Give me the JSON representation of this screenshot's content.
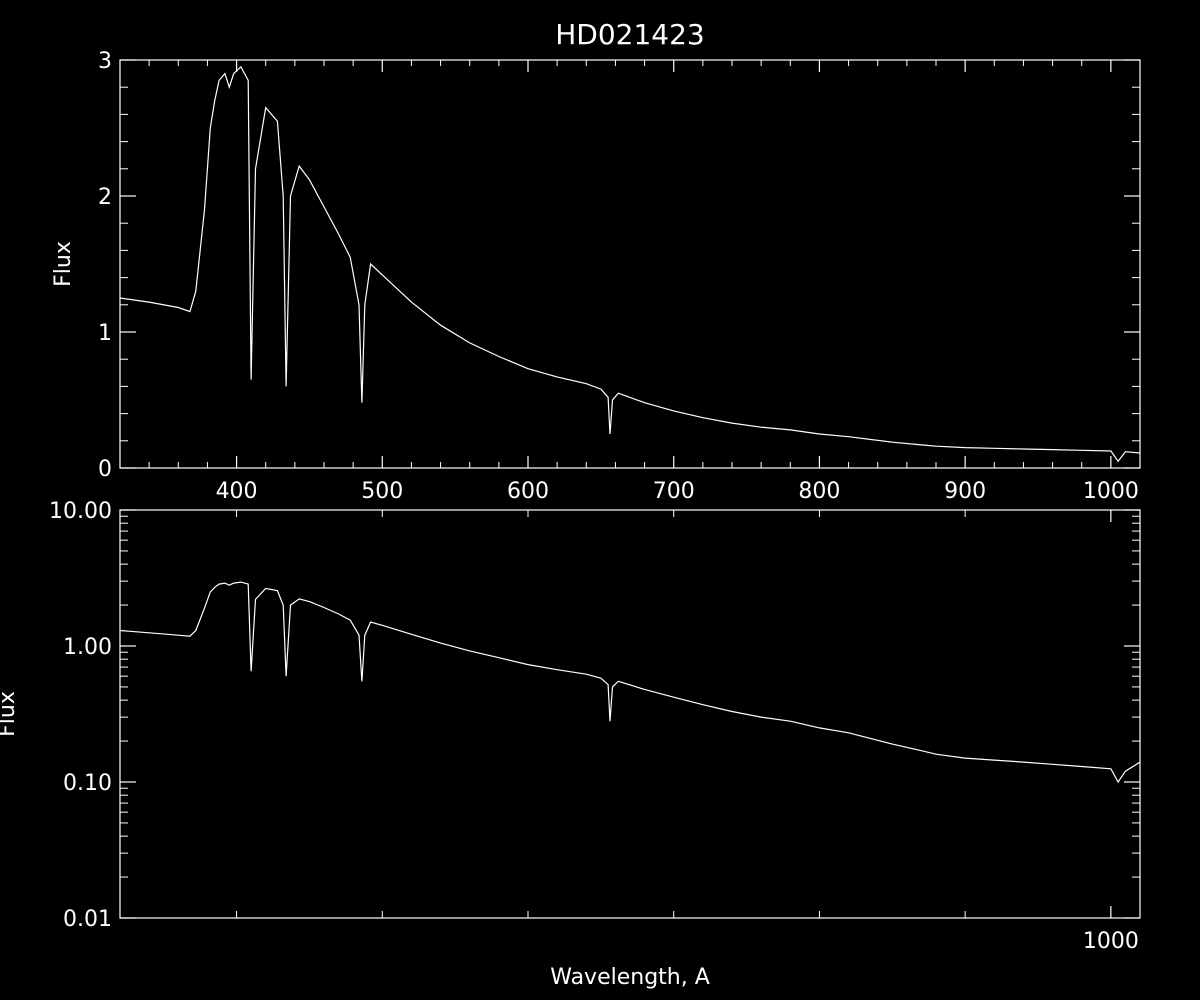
{
  "title": "HD021423",
  "colors": {
    "background": "#000000",
    "foreground": "#ffffff"
  },
  "chart_data": [
    {
      "type": "line",
      "panel": "top",
      "scale": "linear",
      "ylabel": "Flux",
      "xlim": [
        320,
        1020
      ],
      "ylim": [
        0,
        3
      ],
      "xticks": [
        400,
        500,
        600,
        700,
        800,
        900,
        1000
      ],
      "xtick_labels": [
        "400",
        "500",
        "600",
        "700",
        "800",
        "900",
        "1000"
      ],
      "yticks": [
        0,
        1,
        2,
        3
      ],
      "ytick_labels": [
        "0",
        "1",
        "2",
        "3"
      ],
      "series": [
        {
          "x": [
            320,
            340,
            360,
            368,
            372,
            378,
            382,
            385,
            388,
            392,
            395,
            398,
            403,
            408,
            410,
            413,
            420,
            428,
            432,
            434,
            437,
            443,
            450,
            460,
            470,
            478,
            484,
            486,
            488,
            492,
            500,
            520,
            540,
            560,
            580,
            600,
            620,
            640,
            650,
            655,
            656.3,
            658,
            662,
            680,
            700,
            720,
            740,
            760,
            780,
            800,
            820,
            850,
            870,
            880,
            900,
            920,
            940,
            960,
            980,
            1000,
            1005,
            1010,
            1020
          ],
          "y": [
            1.25,
            1.22,
            1.18,
            1.15,
            1.3,
            1.9,
            2.5,
            2.7,
            2.85,
            2.9,
            2.8,
            2.9,
            2.95,
            2.85,
            0.65,
            2.2,
            2.65,
            2.55,
            2.0,
            0.6,
            2.0,
            2.22,
            2.12,
            1.92,
            1.72,
            1.55,
            1.2,
            0.48,
            1.2,
            1.5,
            1.42,
            1.22,
            1.05,
            0.92,
            0.82,
            0.73,
            0.67,
            0.62,
            0.58,
            0.52,
            0.25,
            0.5,
            0.55,
            0.48,
            0.42,
            0.37,
            0.33,
            0.3,
            0.28,
            0.25,
            0.23,
            0.19,
            0.17,
            0.16,
            0.15,
            0.145,
            0.14,
            0.135,
            0.13,
            0.125,
            0.05,
            0.12,
            0.11
          ]
        }
      ]
    },
    {
      "type": "line",
      "panel": "bottom",
      "scale": "log",
      "xlabel": "Wavelength, A",
      "ylabel": "Flux",
      "xlim": [
        320,
        1020
      ],
      "ylim": [
        0.01,
        10
      ],
      "xticks": [
        1000
      ],
      "xtick_labels": [
        "1000"
      ],
      "yticks": [
        0.01,
        0.1,
        1,
        10
      ],
      "ytick_labels": [
        "0.01",
        "0.10",
        "1.00",
        "10.00"
      ],
      "series": [
        {
          "x": [
            320,
            340,
            360,
            368,
            372,
            378,
            382,
            385,
            388,
            392,
            395,
            398,
            403,
            408,
            410,
            413,
            420,
            428,
            432,
            434,
            437,
            443,
            450,
            460,
            470,
            478,
            484,
            486,
            488,
            492,
            500,
            520,
            540,
            560,
            580,
            600,
            620,
            640,
            650,
            655,
            656.3,
            658,
            662,
            680,
            700,
            720,
            740,
            760,
            780,
            800,
            820,
            850,
            870,
            880,
            900,
            920,
            940,
            960,
            980,
            1000,
            1005,
            1010,
            1020
          ],
          "y": [
            1.3,
            1.25,
            1.2,
            1.18,
            1.3,
            1.9,
            2.5,
            2.7,
            2.85,
            2.9,
            2.8,
            2.9,
            2.95,
            2.85,
            0.65,
            2.2,
            2.65,
            2.55,
            2.0,
            0.6,
            2.0,
            2.22,
            2.12,
            1.92,
            1.72,
            1.55,
            1.2,
            0.55,
            1.2,
            1.5,
            1.42,
            1.22,
            1.05,
            0.92,
            0.82,
            0.73,
            0.67,
            0.62,
            0.58,
            0.52,
            0.28,
            0.5,
            0.55,
            0.48,
            0.42,
            0.37,
            0.33,
            0.3,
            0.28,
            0.25,
            0.23,
            0.19,
            0.17,
            0.16,
            0.15,
            0.145,
            0.14,
            0.135,
            0.13,
            0.125,
            0.1,
            0.12,
            0.14
          ]
        }
      ]
    }
  ]
}
